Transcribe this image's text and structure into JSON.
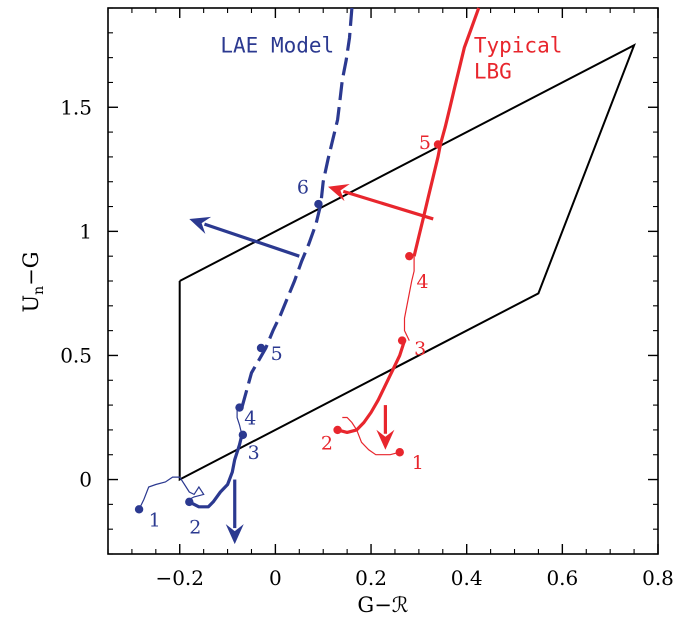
{
  "chart_data": {
    "type": "line",
    "xlabel": "G−ℛ",
    "ylabel_main": "U",
    "ylabel_sub": "n",
    "ylabel_rest": "−G",
    "xlim": [
      -0.35,
      0.8
    ],
    "ylim": [
      -0.3,
      1.9
    ],
    "xticks": [
      -0.2,
      0,
      0.2,
      0.4,
      0.6,
      0.8
    ],
    "xtick_labels": [
      "−0.2",
      "0",
      "0.2",
      "0.4",
      "0.6",
      "0.8"
    ],
    "yticks": [
      0,
      0.5,
      1,
      1.5
    ],
    "ytick_labels": [
      "0",
      "0.5",
      "1",
      "1.5"
    ],
    "grid": false,
    "colors": {
      "frame": "#000000",
      "lae": "#2b3990",
      "lbg": "#e8262d"
    },
    "selection_box": {
      "vertices": [
        [
          -0.2,
          0.8
        ],
        [
          -0.2,
          0.0
        ],
        [
          0.55,
          0.75
        ],
        [
          0.75,
          1.75
        ],
        [
          -0.2,
          0.8
        ]
      ]
    },
    "series": [
      {
        "name": "LAE Model",
        "color": "#2b3990",
        "label_lines": [
          "LAE Model"
        ],
        "faint_track": [
          [
            -0.285,
            -0.12
          ],
          [
            -0.275,
            -0.08
          ],
          [
            -0.265,
            -0.03
          ],
          [
            -0.25,
            -0.02
          ],
          [
            -0.23,
            -0.01
          ],
          [
            -0.215,
            0.01
          ],
          [
            -0.2,
            0.01
          ],
          [
            -0.19,
            -0.02
          ],
          [
            -0.18,
            -0.05
          ],
          [
            -0.17,
            -0.06
          ],
          [
            -0.16,
            -0.03
          ],
          [
            -0.15,
            -0.06
          ],
          [
            -0.17,
            -0.07
          ],
          [
            -0.18,
            -0.08
          ]
        ],
        "bold_track": [
          [
            -0.18,
            -0.09
          ],
          [
            -0.16,
            -0.11
          ],
          [
            -0.14,
            -0.11
          ],
          [
            -0.13,
            -0.09
          ],
          [
            -0.115,
            -0.05
          ],
          [
            -0.1,
            -0.02
          ],
          [
            -0.09,
            0.03
          ],
          [
            -0.085,
            0.08
          ],
          [
            -0.075,
            0.14
          ],
          [
            -0.07,
            0.18
          ]
        ],
        "faint_track_2": [
          [
            -0.07,
            0.18
          ],
          [
            -0.075,
            0.22
          ],
          [
            -0.08,
            0.25
          ],
          [
            -0.08,
            0.29
          ]
        ],
        "dashed_track": [
          [
            -0.07,
            0.29
          ],
          [
            -0.06,
            0.36
          ],
          [
            -0.05,
            0.43
          ],
          [
            -0.035,
            0.48
          ],
          [
            -0.02,
            0.53
          ],
          [
            -0.005,
            0.6
          ],
          [
            0.01,
            0.66
          ],
          [
            0.025,
            0.73
          ],
          [
            0.04,
            0.8
          ],
          [
            0.055,
            0.88
          ],
          [
            0.07,
            0.95
          ],
          [
            0.085,
            1.03
          ],
          [
            0.095,
            1.11
          ],
          [
            0.1,
            1.2
          ],
          [
            0.11,
            1.29
          ],
          [
            0.12,
            1.37
          ],
          [
            0.13,
            1.45
          ],
          [
            0.135,
            1.53
          ],
          [
            0.14,
            1.61
          ],
          [
            0.148,
            1.69
          ],
          [
            0.155,
            1.78
          ],
          [
            0.16,
            1.9
          ]
        ],
        "points": [
          {
            "x": -0.285,
            "y": -0.12,
            "label": "1",
            "lx": -0.265,
            "ly": -0.16
          },
          {
            "x": -0.18,
            "y": -0.09,
            "label": "2",
            "lx": -0.18,
            "ly": -0.19
          },
          {
            "x": -0.068,
            "y": 0.18,
            "label": "3",
            "lx": -0.058,
            "ly": 0.11
          },
          {
            "x": -0.075,
            "y": 0.29,
            "label": "4",
            "lx": -0.065,
            "ly": 0.25
          },
          {
            "x": -0.03,
            "y": 0.53,
            "label": "5",
            "lx": -0.01,
            "ly": 0.51
          },
          {
            "x": 0.09,
            "y": 1.11,
            "label": "6",
            "lx": 0.045,
            "ly": 1.18
          }
        ],
        "arrows": [
          {
            "from": [
              -0.085,
              0.0
            ],
            "to": [
              -0.085,
              -0.26
            ]
          },
          {
            "from": [
              0.05,
              0.9
            ],
            "to": [
              -0.18,
              1.05
            ]
          }
        ],
        "label_at": [
          -0.115,
          1.72
        ]
      },
      {
        "name": "Typical LBG",
        "color": "#e8262d",
        "label_lines": [
          "Typical",
          "LBG"
        ],
        "faint_track": [
          [
            0.26,
            0.11
          ],
          [
            0.24,
            0.1
          ],
          [
            0.21,
            0.1
          ],
          [
            0.195,
            0.12
          ],
          [
            0.18,
            0.15
          ],
          [
            0.17,
            0.2
          ],
          [
            0.16,
            0.23
          ],
          [
            0.15,
            0.25
          ],
          [
            0.14,
            0.25
          ]
        ],
        "faint_track_2": [
          [
            0.28,
            0.56
          ],
          [
            0.27,
            0.6
          ],
          [
            0.27,
            0.65
          ],
          [
            0.275,
            0.7
          ],
          [
            0.28,
            0.75
          ],
          [
            0.285,
            0.8
          ],
          [
            0.29,
            0.84
          ],
          [
            0.29,
            0.9
          ]
        ],
        "bold_track": [
          [
            0.13,
            0.2
          ],
          [
            0.15,
            0.19
          ],
          [
            0.17,
            0.2
          ],
          [
            0.185,
            0.23
          ],
          [
            0.2,
            0.27
          ],
          [
            0.215,
            0.32
          ],
          [
            0.23,
            0.38
          ],
          [
            0.245,
            0.44
          ],
          [
            0.26,
            0.5
          ],
          [
            0.27,
            0.56
          ]
        ],
        "bold_track_2": [
          [
            0.29,
            0.9
          ],
          [
            0.3,
            0.98
          ],
          [
            0.31,
            1.06
          ],
          [
            0.32,
            1.14
          ],
          [
            0.33,
            1.22
          ],
          [
            0.34,
            1.3
          ],
          [
            0.345,
            1.35
          ],
          [
            0.355,
            1.42
          ],
          [
            0.365,
            1.5
          ],
          [
            0.375,
            1.58
          ],
          [
            0.385,
            1.66
          ],
          [
            0.395,
            1.74
          ],
          [
            0.41,
            1.82
          ],
          [
            0.425,
            1.9
          ]
        ],
        "points": [
          {
            "x": 0.26,
            "y": 0.11,
            "label": "1",
            "lx": 0.285,
            "ly": 0.07
          },
          {
            "x": 0.13,
            "y": 0.2,
            "label": "2",
            "lx": 0.095,
            "ly": 0.15
          },
          {
            "x": 0.265,
            "y": 0.56,
            "label": "3",
            "lx": 0.29,
            "ly": 0.53
          },
          {
            "x": 0.28,
            "y": 0.9,
            "label": "4",
            "lx": 0.295,
            "ly": 0.8
          },
          {
            "x": 0.34,
            "y": 1.35,
            "label": "5",
            "lx": 0.3,
            "ly": 1.36
          }
        ],
        "arrows": [
          {
            "from": [
              0.23,
              0.3
            ],
            "to": [
              0.23,
              0.12
            ]
          },
          {
            "from": [
              0.33,
              1.05
            ],
            "to": [
              0.11,
              1.18
            ]
          }
        ],
        "label_at": [
          0.415,
          1.72
        ]
      }
    ]
  }
}
